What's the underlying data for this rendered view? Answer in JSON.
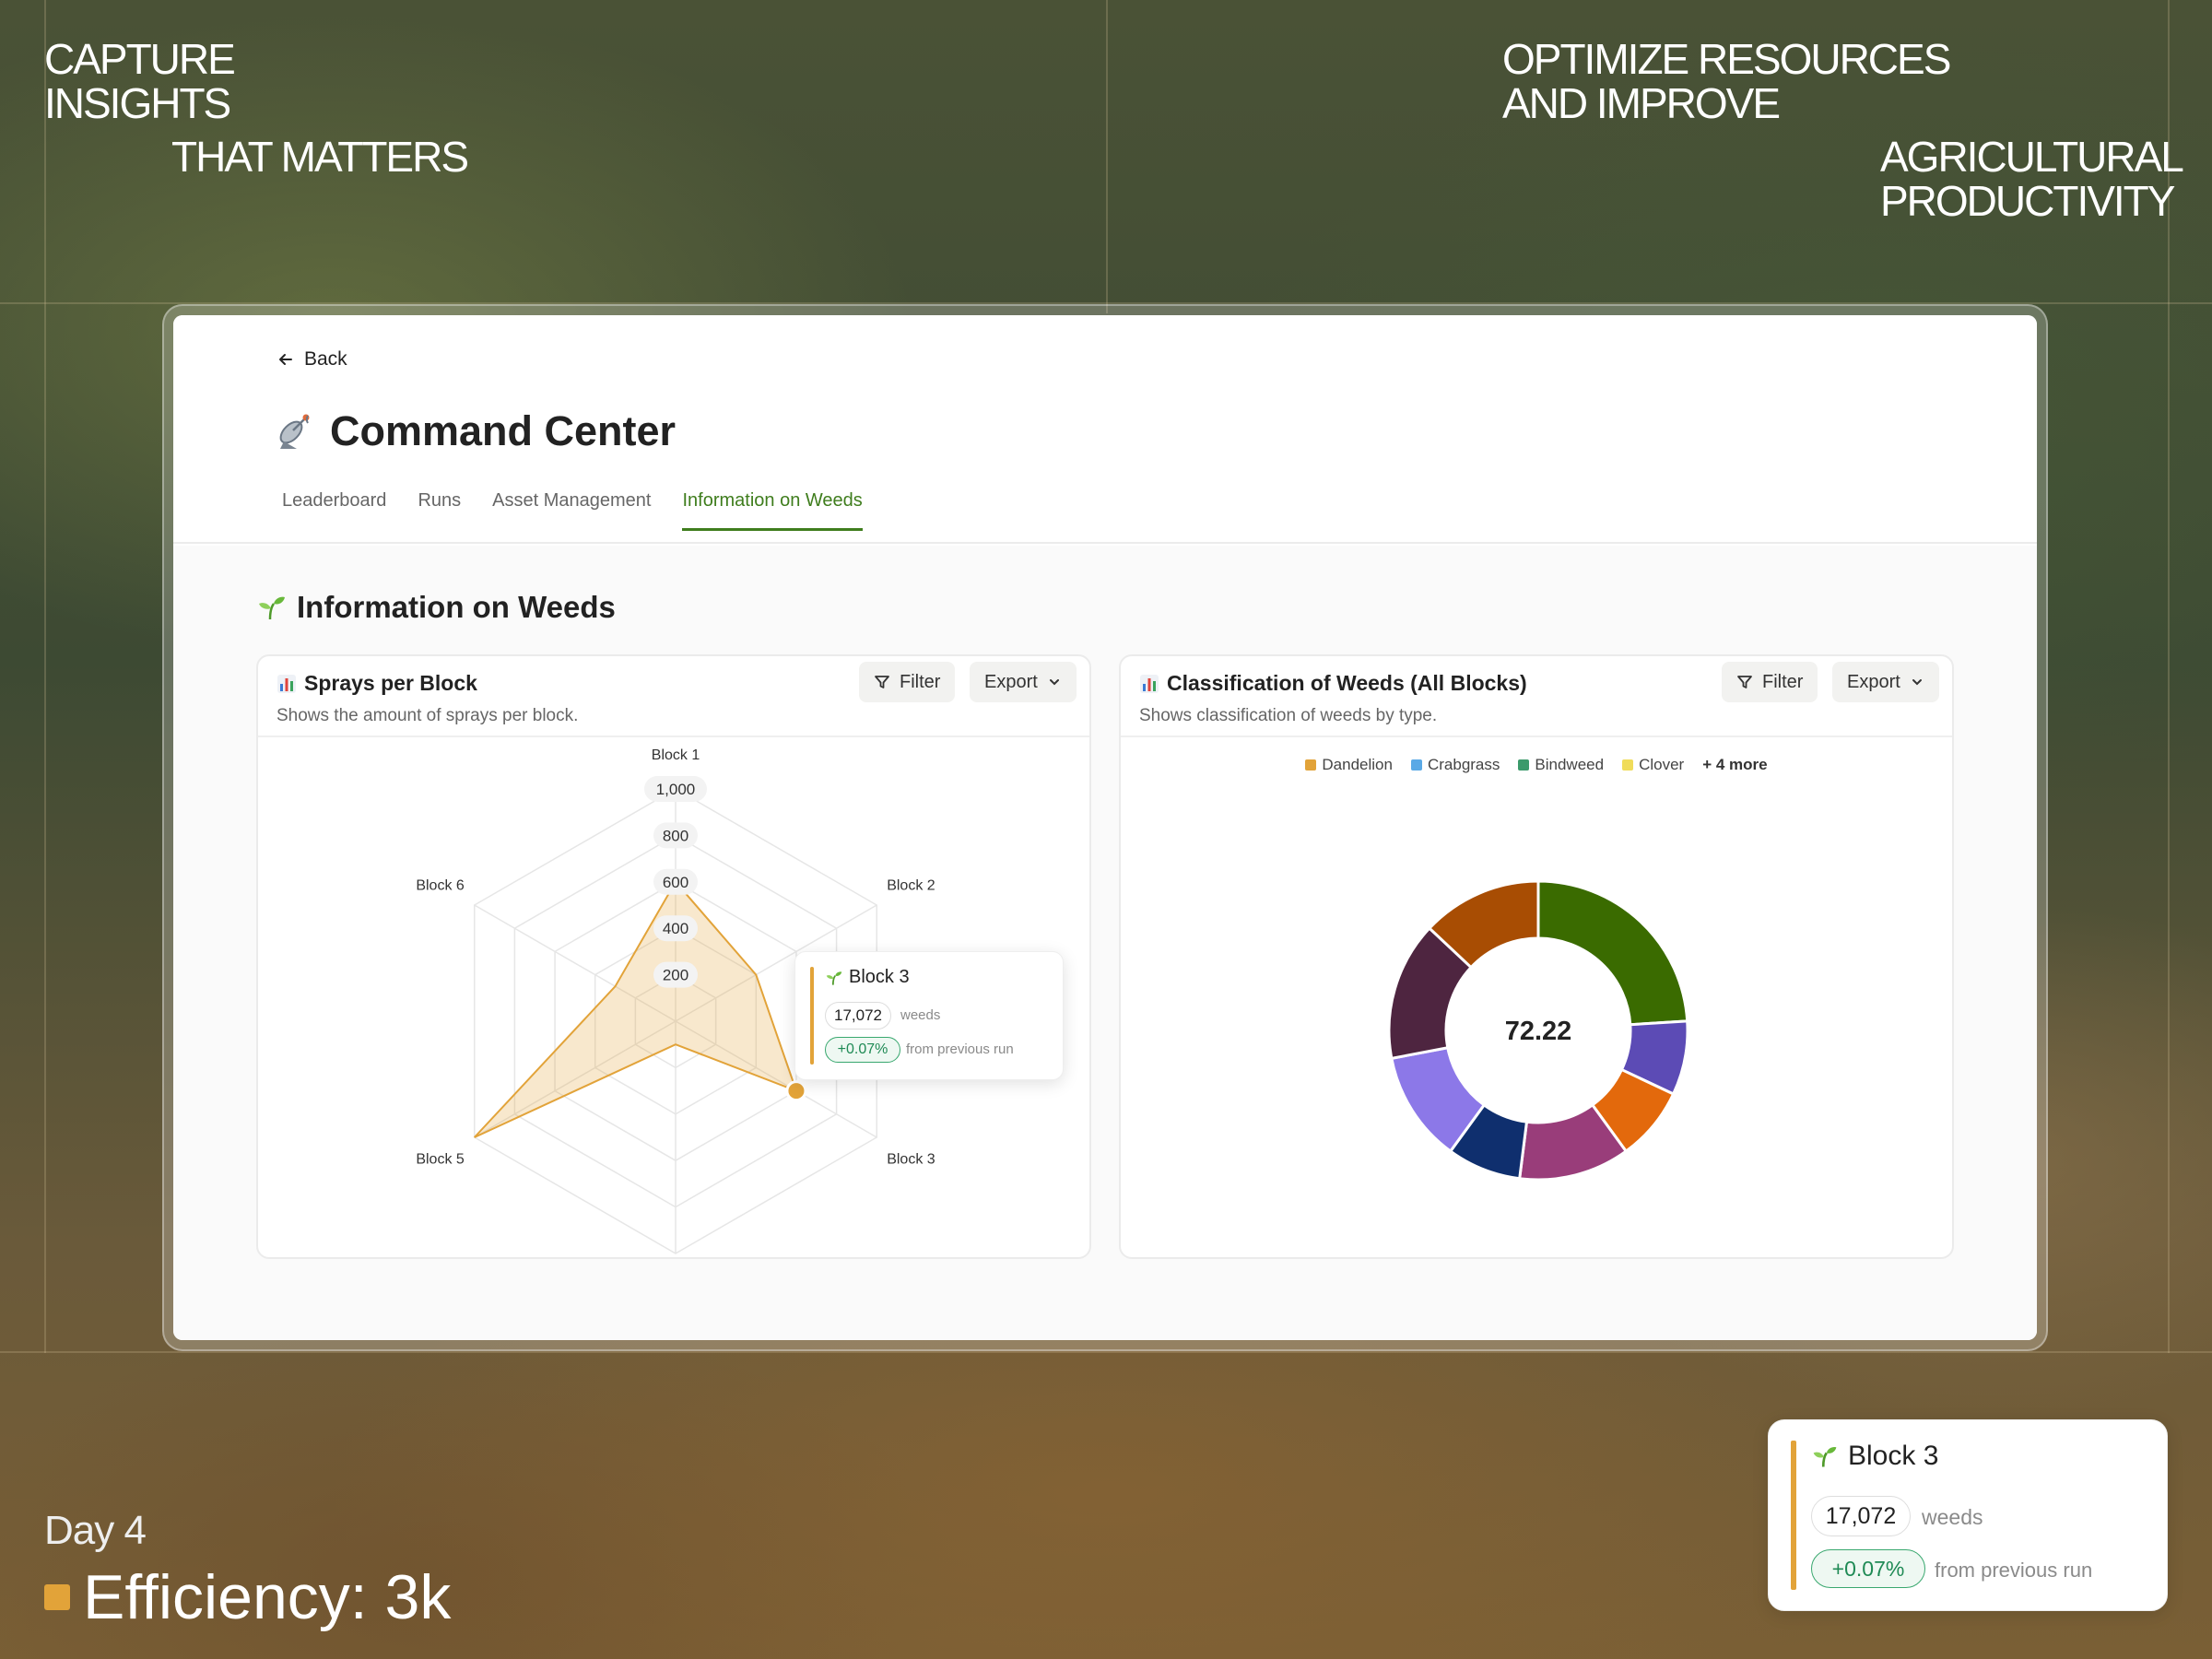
{
  "hero": {
    "left_line1": "CAPTURE",
    "left_line2": "INSIGHTS",
    "left_line3": "THAT MATTERS",
    "right_line1": "OPTIMIZE RESOURCES",
    "right_line2": "AND IMPROVE",
    "right_line3": "AGRICULTURAL",
    "right_line4": "PRODUCTIVITY"
  },
  "header": {
    "back_label": "Back",
    "title": "Command Center",
    "title_icon": "satellite-dish-icon"
  },
  "tabs": [
    {
      "label": "Leaderboard",
      "active": false
    },
    {
      "label": "Runs",
      "active": false
    },
    {
      "label": "Asset Management",
      "active": false
    },
    {
      "label": "Information on Weeds",
      "active": true
    }
  ],
  "section": {
    "title": "Information on Weeds",
    "icon": "seedling-icon"
  },
  "cards": {
    "sprays": {
      "title": "Sprays per Block",
      "subtitle": "Shows the amount of sprays per block.",
      "filter_label": "Filter",
      "export_label": "Export"
    },
    "classification": {
      "title": "Classification of Weeds (All Blocks)",
      "subtitle": "Shows classification of weeds by type.",
      "filter_label": "Filter",
      "export_label": "Export"
    }
  },
  "tooltip": {
    "block": "Block 3",
    "count": "17,072",
    "count_unit": "weeds",
    "change": "+0.07%",
    "change_label": "from previous run"
  },
  "legend": {
    "items": [
      {
        "label": "Dandelion",
        "color": "#e2a339"
      },
      {
        "label": "Crabgrass",
        "color": "#5aa9e6"
      },
      {
        "label": "Bindweed",
        "color": "#3c9a6b"
      },
      {
        "label": "Clover",
        "color": "#f0dc5a"
      }
    ],
    "more_label": "+ 4 more"
  },
  "footer": {
    "day": "Day 4",
    "efficiency": "Efficiency: 3k"
  },
  "colors": {
    "accent": "#3f7d1d",
    "radar": "#e2a339"
  },
  "chart_data": [
    {
      "type": "radar",
      "title": "Sprays per Block",
      "categories": [
        "Block 1",
        "Block 2",
        "Block 3",
        "Block 4",
        "Block 5",
        "Block 6"
      ],
      "values": [
        600,
        400,
        600,
        100,
        1000,
        300
      ],
      "ticks": [
        "200",
        "400",
        "600",
        "800",
        "1,000"
      ],
      "tick_values": [
        200,
        400,
        600,
        800,
        1000
      ],
      "ylim": [
        0,
        1000
      ],
      "highlight_index": 2
    },
    {
      "type": "pie",
      "title": "Classification of Weeds (All Blocks)",
      "center_label": "72.22",
      "values": [
        24,
        8,
        8,
        12,
        8,
        12,
        15,
        13
      ],
      "colors": [
        "#3a6b00",
        "#5c4bb5",
        "#e3690c",
        "#993d7a",
        "#0f2f6e",
        "#8c78e8",
        "#4e2540",
        "#a84d03"
      ]
    }
  ]
}
